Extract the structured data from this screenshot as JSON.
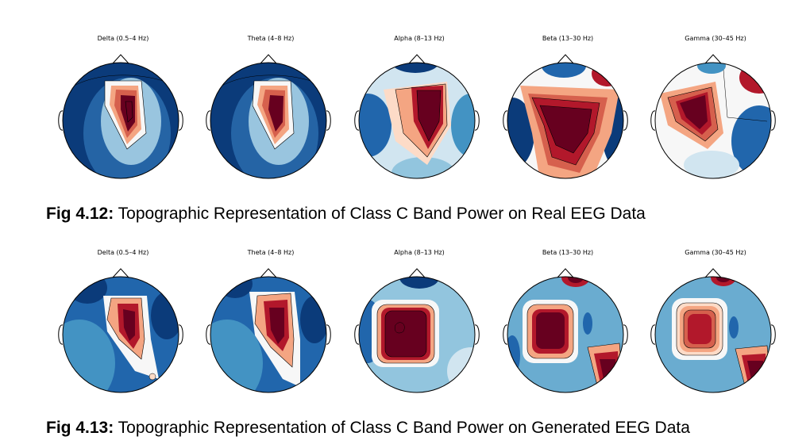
{
  "figures": [
    {
      "bands": [
        {
          "label": "Delta (0.5–4 Hz)"
        },
        {
          "label": "Theta (4–8 Hz)"
        },
        {
          "label": "Alpha (8–13 Hz)"
        },
        {
          "label": "Beta (13–30 Hz)"
        },
        {
          "label": "Gamma (30–45 Hz)"
        }
      ],
      "caption_label": "Fig 4.12:",
      "caption_text": " Topographic Representation of Class C Band Power on Real EEG Data"
    },
    {
      "bands": [
        {
          "label": "Delta (0.5–4 Hz)"
        },
        {
          "label": "Theta (4–8 Hz)"
        },
        {
          "label": "Alpha (8–13 Hz)"
        },
        {
          "label": "Beta (13–30 Hz)"
        },
        {
          "label": "Gamma (30–45 Hz)"
        }
      ],
      "caption_label": "Fig 4.13:",
      "caption_text": " Topographic Representation of Class C Band Power on Generated EEG Data"
    }
  ],
  "colors": {
    "low": "#08306b",
    "mid": "#f7f7f7",
    "high": "#67001f",
    "outline": "#000000"
  }
}
